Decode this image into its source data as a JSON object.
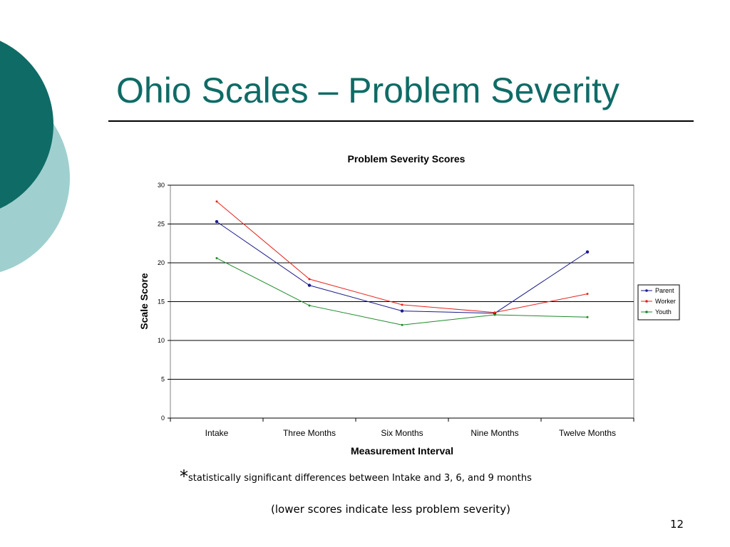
{
  "slide": {
    "title": "Ohio Scales – Problem Severity",
    "footnote_star": "*",
    "footnote": "statistically significant differences between Intake and 3, 6, and 9 months",
    "lower_note": "(lower scores indicate less problem severity)",
    "page_number": "12",
    "colors": {
      "title": "#0f6b66",
      "circle_dark": "#0f6b66",
      "circle_light": "#9fd0cf"
    }
  },
  "chart_data": {
    "type": "line",
    "title": "Problem Severity Scores",
    "xlabel": "Measurement Interval",
    "ylabel": "Scale Score",
    "categories": [
      "Intake",
      "Three Months",
      "Six Months",
      "Nine Months",
      "Twelve Months"
    ],
    "ylim": [
      0,
      30
    ],
    "yticks": [
      0,
      5,
      10,
      15,
      20,
      25,
      30
    ],
    "grid": true,
    "legend_position": "right",
    "series": [
      {
        "name": "Parent",
        "color": "#1a1a8c",
        "values": [
          25.3,
          17.1,
          13.8,
          13.5,
          21.4
        ]
      },
      {
        "name": "Worker",
        "color": "#e8231c",
        "values": [
          27.9,
          17.9,
          14.6,
          13.6,
          16.0
        ]
      },
      {
        "name": "Youth",
        "color": "#1e8a2a",
        "values": [
          20.6,
          14.5,
          12.0,
          13.3,
          13.0
        ]
      }
    ]
  }
}
